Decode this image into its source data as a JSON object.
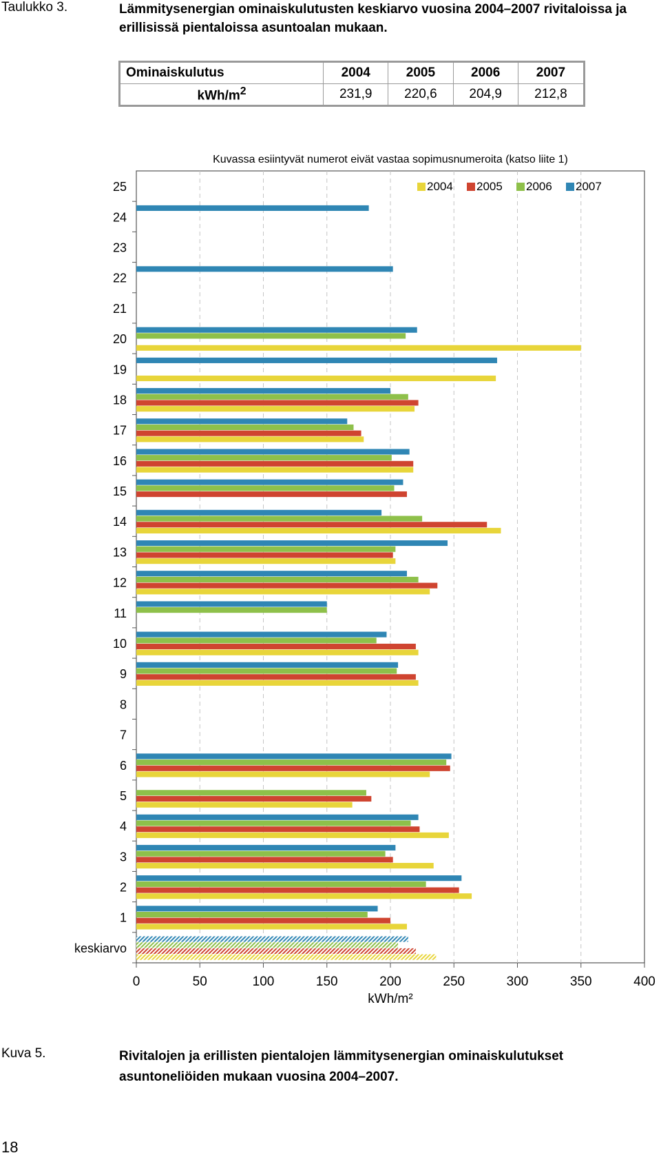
{
  "table_label": "Taulukko 3.",
  "table_title": "Lämmitysenergian ominaiskulutusten keskiarvo vuosina 2004–2007 rivitaloissa ja erillisissä pientaloissa asuntoalan mukaan.",
  "summary_table": {
    "header": [
      "Ominaiskulutus",
      "2004",
      "2005",
      "2006",
      "2007"
    ],
    "unit_prefix": "kWh/m",
    "unit_sup": "2",
    "values": [
      "231,9",
      "220,6",
      "204,9",
      "212,8"
    ]
  },
  "chart_data": {
    "type": "bar",
    "orientation": "horizontal",
    "title": "Kuvassa esiintyvät numerot eivät vastaa sopimusnumeroita (katso liite 1)",
    "xlabel": "kWh/m²",
    "xlim": [
      0,
      400
    ],
    "xticks": [
      "0",
      "50",
      "100",
      "150",
      "200",
      "250",
      "300",
      "350",
      "400"
    ],
    "legend_position": "top-right",
    "grid": "vertical-dashed",
    "categories": [
      "25",
      "24",
      "23",
      "22",
      "21",
      "20",
      "19",
      "18",
      "17",
      "16",
      "15",
      "14",
      "13",
      "12",
      "11",
      "10",
      "9",
      "8",
      "7",
      "6",
      "5",
      "4",
      "3",
      "2",
      "1",
      "keskiarvo"
    ],
    "series": [
      {
        "name": "2004",
        "color": "#e8d53a",
        "values": [
          null,
          null,
          null,
          null,
          null,
          350,
          283,
          219,
          179,
          218,
          null,
          287,
          204,
          231,
          null,
          222,
          222,
          null,
          null,
          231,
          170,
          246,
          234,
          264,
          213,
          236
        ]
      },
      {
        "name": "2005",
        "color": "#cf4430",
        "values": [
          null,
          null,
          null,
          null,
          null,
          null,
          null,
          222,
          177,
          218,
          213,
          276,
          202,
          237,
          null,
          220,
          220,
          null,
          null,
          247,
          185,
          223,
          202,
          254,
          200,
          220
        ]
      },
      {
        "name": "2006",
        "color": "#8ec04a",
        "values": [
          null,
          null,
          null,
          null,
          null,
          212,
          null,
          214,
          171,
          201,
          203,
          225,
          204,
          222,
          150,
          189,
          205,
          null,
          null,
          244,
          181,
          216,
          196,
          228,
          182,
          206
        ]
      },
      {
        "name": "2007",
        "color": "#2f86b4",
        "values": [
          null,
          183,
          null,
          202,
          null,
          221,
          284,
          200,
          166,
          215,
          210,
          193,
          245,
          213,
          150,
          197,
          206,
          null,
          null,
          248,
          null,
          222,
          204,
          256,
          190,
          214
        ]
      }
    ]
  },
  "figure_label": "Kuva 5.",
  "figure_caption": "Rivitalojen ja erillisten pientalojen lämmitysenergian ominaiskulutukset asuntoneliöiden mukaan vuosina 2004–2007.",
  "page_number": "18"
}
